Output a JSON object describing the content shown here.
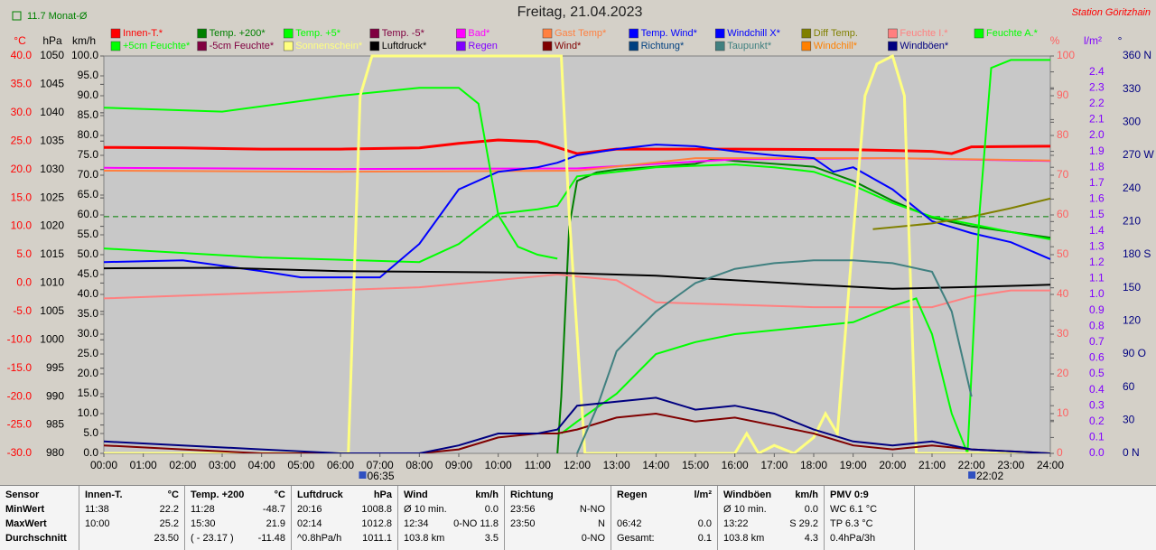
{
  "chart_data": {
    "type": "line",
    "title": "Freitag, 21.04.2023",
    "station": "Station Göritzhain",
    "monthly_average": {
      "value": 11.7,
      "label": "11.7 Monat-Ø",
      "color": "#008000"
    },
    "xlim": [
      0,
      24
    ],
    "xticks": [
      {
        "value": 0,
        "label": "00:00"
      },
      {
        "value": 1,
        "label": "01:00"
      },
      {
        "value": 2,
        "label": "02:00"
      },
      {
        "value": 3,
        "label": "03:00"
      },
      {
        "value": 4,
        "label": "04:00"
      },
      {
        "value": 5,
        "label": "05:00"
      },
      {
        "value": 6,
        "label": "06:00"
      },
      {
        "value": 7,
        "label": "07:00"
      },
      {
        "value": 8,
        "label": "08:00"
      },
      {
        "value": 9,
        "label": "09:00"
      },
      {
        "value": 10,
        "label": "10:00"
      },
      {
        "value": 11,
        "label": "11:00"
      },
      {
        "value": 12,
        "label": "12:00"
      },
      {
        "value": 13,
        "label": "13:00"
      },
      {
        "value": 14,
        "label": "14:00"
      },
      {
        "value": 15,
        "label": "15:00"
      },
      {
        "value": 16,
        "label": "16:00"
      },
      {
        "value": 17,
        "label": "17:00"
      },
      {
        "value": 18,
        "label": "18:00"
      },
      {
        "value": 19,
        "label": "19:00"
      },
      {
        "value": 20,
        "label": "20:00"
      },
      {
        "value": 21,
        "label": "21:00"
      },
      {
        "value": 22,
        "label": "22:00"
      },
      {
        "value": 23,
        "label": "23:00"
      },
      {
        "value": 24,
        "label": "24:00"
      }
    ],
    "sun_markers": [
      {
        "value": 6.5833,
        "label": "06:35"
      },
      {
        "value": 22.0333,
        "label": "22:02"
      }
    ],
    "axes": [
      {
        "label": "°C",
        "color": "#ff0000",
        "ylim": [
          -30,
          40
        ],
        "yticks": [
          {
            "value": 40,
            "label": "40.0"
          },
          {
            "value": 35,
            "label": "35.0"
          },
          {
            "value": 30,
            "label": "30.0"
          },
          {
            "value": 25,
            "label": "25.0"
          },
          {
            "value": 20,
            "label": "20.0"
          },
          {
            "value": 15,
            "label": "15.0"
          },
          {
            "value": 10,
            "label": "10.0"
          },
          {
            "value": 5,
            "label": "5.0"
          },
          {
            "value": 0,
            "label": "0.0"
          },
          {
            "value": -5,
            "label": "-5.0"
          },
          {
            "value": -10,
            "label": "-10.0"
          },
          {
            "value": -15,
            "label": "-15.0"
          },
          {
            "value": -20,
            "label": "-20.0"
          },
          {
            "value": -25,
            "label": "-25.0"
          },
          {
            "value": -30,
            "label": "-30.0"
          }
        ]
      },
      {
        "label": "hPa",
        "color": "#000000",
        "ylim": [
          980,
          1050
        ],
        "yticks": [
          1050,
          1045,
          1040,
          1035,
          1030,
          1025,
          1020,
          1015,
          1010,
          1005,
          1000,
          995,
          990,
          985,
          980
        ]
      },
      {
        "label": "km/h",
        "color": "#000000",
        "ylim": [
          0,
          100
        ],
        "yticks": [
          {
            "value": 100,
            "label": "100.0"
          },
          {
            "value": 95,
            "label": "95.0"
          },
          {
            "value": 90,
            "label": "90.0"
          },
          {
            "value": 85,
            "label": "85.0"
          },
          {
            "value": 80,
            "label": "80.0"
          },
          {
            "value": 75,
            "label": "75.0"
          },
          {
            "value": 70,
            "label": "70.0"
          },
          {
            "value": 65,
            "label": "65.0"
          },
          {
            "value": 60,
            "label": "60.0"
          },
          {
            "value": 55,
            "label": "55.0"
          },
          {
            "value": 50,
            "label": "50.0"
          },
          {
            "value": 45,
            "label": "45.0"
          },
          {
            "value": 40,
            "label": "40.0"
          },
          {
            "value": 35,
            "label": "35.0"
          },
          {
            "value": 30,
            "label": "30.0"
          },
          {
            "value": 25,
            "label": "25.0"
          },
          {
            "value": 20,
            "label": "20.0"
          },
          {
            "value": 15,
            "label": "15.0"
          },
          {
            "value": 10,
            "label": "10.0"
          },
          {
            "value": 5,
            "label": "5.0"
          },
          {
            "value": 0,
            "label": "0.0"
          }
        ]
      },
      {
        "label": "%",
        "color": "#ff6060",
        "ylim": [
          0,
          100
        ],
        "yticks": [
          100,
          90,
          80,
          70,
          60,
          50,
          40,
          30,
          20,
          10,
          0
        ]
      },
      {
        "label": "l/m²",
        "color": "#8000ff",
        "ylim": [
          0,
          2.5
        ],
        "yticks": [
          2.4,
          2.3,
          2.2,
          2.1,
          {
            "value": 2,
            "label": "2.0"
          },
          1.9,
          1.8,
          1.7,
          1.6,
          1.5,
          1.4,
          1.3,
          1.2,
          1.1,
          {
            "value": 1,
            "label": "1.0"
          },
          0.9,
          0.8,
          0.7,
          0.6,
          0.5,
          0.4,
          0.3,
          0.2,
          0.1,
          {
            "value": 0,
            "label": "0.0"
          }
        ]
      },
      {
        "label": "°",
        "color": "#000080",
        "ylim": [
          0,
          360
        ],
        "yticks": [
          {
            "value": 360,
            "label": "360 N"
          },
          330,
          300,
          {
            "value": 270,
            "label": "270 W"
          },
          240,
          210,
          {
            "value": 180,
            "label": "180 S"
          },
          150,
          120,
          {
            "value": 90,
            "label": "90 O"
          },
          60,
          30,
          {
            "value": 0,
            "label": "0 N"
          }
        ]
      }
    ],
    "series": [
      {
        "name": "Innen-T.*",
        "color": "#ff0000",
        "axis": 0,
        "x": [
          0,
          2,
          4,
          6,
          8,
          9,
          10,
          11,
          11.5,
          12,
          13,
          16,
          19,
          21,
          21.5,
          22,
          24
        ],
        "values": [
          23.9,
          23.8,
          23.6,
          23.6,
          23.8,
          24.6,
          25.2,
          24.9,
          23.9,
          22.8,
          23.6,
          23.6,
          23.5,
          23.2,
          22.8,
          24.0,
          24.1
        ]
      },
      {
        "name": "Temp. +200*",
        "color": "#008000",
        "axis": 0,
        "x": [
          11.5,
          11.6,
          11.8,
          12,
          12.5,
          13,
          14,
          15,
          15.5,
          16,
          17,
          18,
          19,
          20,
          21,
          22,
          23,
          24
        ],
        "values": [
          -30,
          -20,
          10,
          18,
          19.5,
          20,
          20.5,
          21,
          21.9,
          21.5,
          21,
          20.5,
          18,
          14.5,
          11.5,
          10,
          9,
          8
        ]
      },
      {
        "name": "Temp. +5*",
        "color": "#00ff00",
        "axis": 0,
        "x": [
          0,
          4,
          8,
          9,
          10,
          11,
          11.5,
          12,
          14,
          16,
          17,
          18,
          19,
          20,
          21,
          22,
          23,
          24
        ],
        "values": [
          6.1,
          4.5,
          3.7,
          6.9,
          12.2,
          13,
          13.6,
          18.8,
          20.4,
          20.9,
          20.4,
          19.6,
          17.2,
          14.1,
          11.7,
          10.4,
          9,
          7.7
        ]
      },
      {
        "name": "Temp. -5*",
        "color": "#800040"
      },
      {
        "name": "Bad*",
        "color": "#ff00ff",
        "axis": 0,
        "x": [
          0,
          6,
          12,
          16,
          20,
          24
        ],
        "values": [
          20.3,
          20.1,
          20.2,
          21.8,
          22.0,
          21.5
        ]
      },
      {
        "name": "Gast Temp*",
        "color": "#ff8040",
        "axis": 0,
        "x": [
          0,
          6,
          12,
          15,
          20,
          24
        ],
        "values": [
          19.8,
          19.6,
          19.8,
          22,
          22,
          21.6
        ]
      },
      {
        "name": "Temp. Wind*",
        "color": "#0000ff",
        "axis": 0,
        "x": [
          0,
          2,
          4,
          5,
          7,
          8,
          9,
          10,
          11,
          11.5,
          12,
          13,
          14,
          15,
          16,
          17,
          18,
          18.5,
          19,
          20,
          21,
          22,
          23,
          24
        ],
        "values": [
          3.7,
          4,
          2.1,
          1,
          1,
          6.9,
          16.5,
          19.6,
          20.4,
          21.2,
          22.5,
          23.6,
          24.4,
          24.1,
          23.2,
          22.5,
          22,
          19.6,
          20.4,
          16.5,
          10.9,
          8.8,
          7.2,
          4.2
        ]
      },
      {
        "name": "Windchill X*",
        "color": "#0000ff"
      },
      {
        "name": "Diff Temp.",
        "color": "#808000",
        "axis": 0,
        "x": [
          19.5,
          21,
          22,
          23,
          24
        ],
        "values": [
          9.5,
          10.5,
          11.7,
          13.2,
          14.9
        ]
      },
      {
        "name": "Feuchte I.*",
        "color": "#ff8080",
        "axis": 3,
        "x": [
          0,
          8,
          11.5,
          13,
          14,
          18,
          21,
          22,
          23,
          24
        ],
        "values": [
          39,
          41.8,
          45,
          43.6,
          38,
          36.8,
          36.8,
          39.5,
          41,
          41
        ]
      },
      {
        "name": "Feuchte A.*",
        "color": "#00ff00",
        "axis": 3,
        "x": [
          11.6,
          12,
          13,
          14,
          15,
          16,
          17,
          18,
          19,
          20,
          20.6,
          21,
          21.5,
          21.9,
          22.2,
          22.5,
          23,
          24
        ],
        "values": [
          5,
          8,
          15,
          25,
          28,
          30,
          31,
          32,
          33,
          37,
          39,
          30,
          10,
          0,
          60,
          97,
          99,
          99
        ]
      },
      {
        "name": "+5cm Feuchte*",
        "color": "#00ff00",
        "axis": 3,
        "x": [
          0,
          3,
          6,
          8,
          9,
          9.5,
          10,
          10.5,
          11,
          11.5
        ],
        "values": [
          87,
          86,
          90,
          92,
          92,
          88,
          60,
          52,
          50,
          49
        ]
      },
      {
        "name": "-5cm Feuchte*",
        "color": "#800040"
      },
      {
        "name": "Sonnenschein*",
        "color": "#ffff80",
        "axis": 3,
        "x": [
          0,
          6.2,
          6.5,
          6.8,
          11.6,
          11.8,
          12.2,
          16,
          16.3,
          16.6,
          17,
          17.5,
          18,
          18.3,
          18.6,
          19,
          19.3,
          19.6,
          20,
          20.3,
          20.6,
          24
        ],
        "values": [
          0,
          0,
          90,
          100,
          100,
          60,
          0,
          0,
          5,
          0,
          2,
          0,
          4,
          10,
          5,
          55,
          90,
          98,
          100,
          90,
          0,
          0
        ]
      },
      {
        "name": "Luftdruck*",
        "color": "#000000",
        "axis": 1,
        "x": [
          0,
          3,
          6,
          11.5,
          14,
          18,
          20,
          22,
          24
        ],
        "values": [
          1012.6,
          1012.7,
          1012.1,
          1011.8,
          1011.3,
          1009.7,
          1009,
          1009.3,
          1009.7
        ]
      },
      {
        "name": "Regen",
        "color": "#8000ff"
      },
      {
        "name": "Wind*",
        "color": "#800000",
        "axis": 2,
        "x": [
          0,
          2,
          4,
          6,
          8,
          9,
          10,
          11,
          11.5,
          12,
          13,
          14,
          15,
          16,
          17,
          18,
          19,
          20,
          21,
          22,
          24
        ],
        "values": [
          2,
          1,
          0,
          0,
          0,
          1,
          4,
          5,
          5,
          6,
          9,
          10,
          8,
          9,
          7,
          5,
          2,
          1,
          2,
          1,
          0
        ]
      },
      {
        "name": "Richtung*",
        "color": "#004080"
      },
      {
        "name": "Taupunkt*",
        "color": "#408080",
        "axis": 0,
        "x": [
          12,
          12.5,
          13,
          14,
          15,
          16,
          17,
          18,
          19,
          20,
          21,
          21.5,
          22
        ],
        "values": [
          -30,
          -22,
          -12,
          -5,
          0,
          2.5,
          3.5,
          4,
          4,
          3.5,
          2,
          -5,
          -20
        ]
      },
      {
        "name": "Windchill*",
        "color": "#ff8000"
      },
      {
        "name": "Windböen*",
        "color": "#000080",
        "axis": 2,
        "x": [
          0,
          2,
          4,
          6,
          8,
          9,
          10,
          11,
          11.5,
          12,
          13,
          14,
          15,
          16,
          17,
          18,
          19,
          20,
          21,
          22,
          24
        ],
        "values": [
          3,
          2,
          1,
          0,
          0,
          2,
          5,
          5,
          6,
          12,
          13,
          14,
          11,
          12,
          10,
          6,
          3,
          2,
          3,
          1,
          0
        ]
      }
    ]
  },
  "stats": {
    "row_labels": [
      "Sensor",
      "MinWert",
      "MaxWert",
      "Durchschnitt"
    ],
    "columns": [
      {
        "title": "Innen-T.",
        "unit": "°C",
        "rows": [
          [
            "11:38",
            "22.2"
          ],
          [
            "10:00",
            "25.2"
          ],
          [
            "23.50"
          ]
        ]
      },
      {
        "title": "Temp. +200",
        "unit": "°C",
        "rows": [
          [
            "11:28",
            "-48.7"
          ],
          [
            "15:30",
            "21.9"
          ],
          [
            "( - 23.17 )",
            "-11.48"
          ]
        ]
      },
      {
        "title": "Luftdruck",
        "unit": "hPa",
        "rows": [
          [
            "20:16",
            "1008.8"
          ],
          [
            "02:14",
            "1012.8"
          ],
          [
            "^0.8hPa/h",
            "1011.1"
          ]
        ]
      },
      {
        "title": "Wind",
        "unit": "km/h",
        "rows": [
          [
            "Ø 10 min.",
            "0.0"
          ],
          [
            "12:34",
            "0-NO 11.8"
          ],
          [
            "103.8 km",
            "3.5"
          ]
        ]
      },
      {
        "title": "Richtung",
        "rows": [
          [
            "23:56",
            "N-NO"
          ],
          [
            "23:50",
            "N"
          ],
          [
            "0-NO"
          ]
        ]
      },
      {
        "title": "Regen",
        "unit": "l/m²",
        "rows": [
          [],
          [
            "06:42",
            "0.0"
          ],
          [
            "Gesamt:",
            "0.1"
          ]
        ]
      },
      {
        "title": "Windböen",
        "unit": "km/h",
        "rows": [
          [
            "Ø 10 min.",
            "0.0"
          ],
          [
            "13:22",
            "S 29.2"
          ],
          [
            "103.8 km",
            "4.3"
          ]
        ]
      },
      {
        "title": "PMV 0:9",
        "rows": [
          [
            "WC 6.1 °C"
          ],
          [
            "TP 6.3 °C"
          ],
          [
            "0.4hPa/3h"
          ]
        ]
      }
    ]
  }
}
